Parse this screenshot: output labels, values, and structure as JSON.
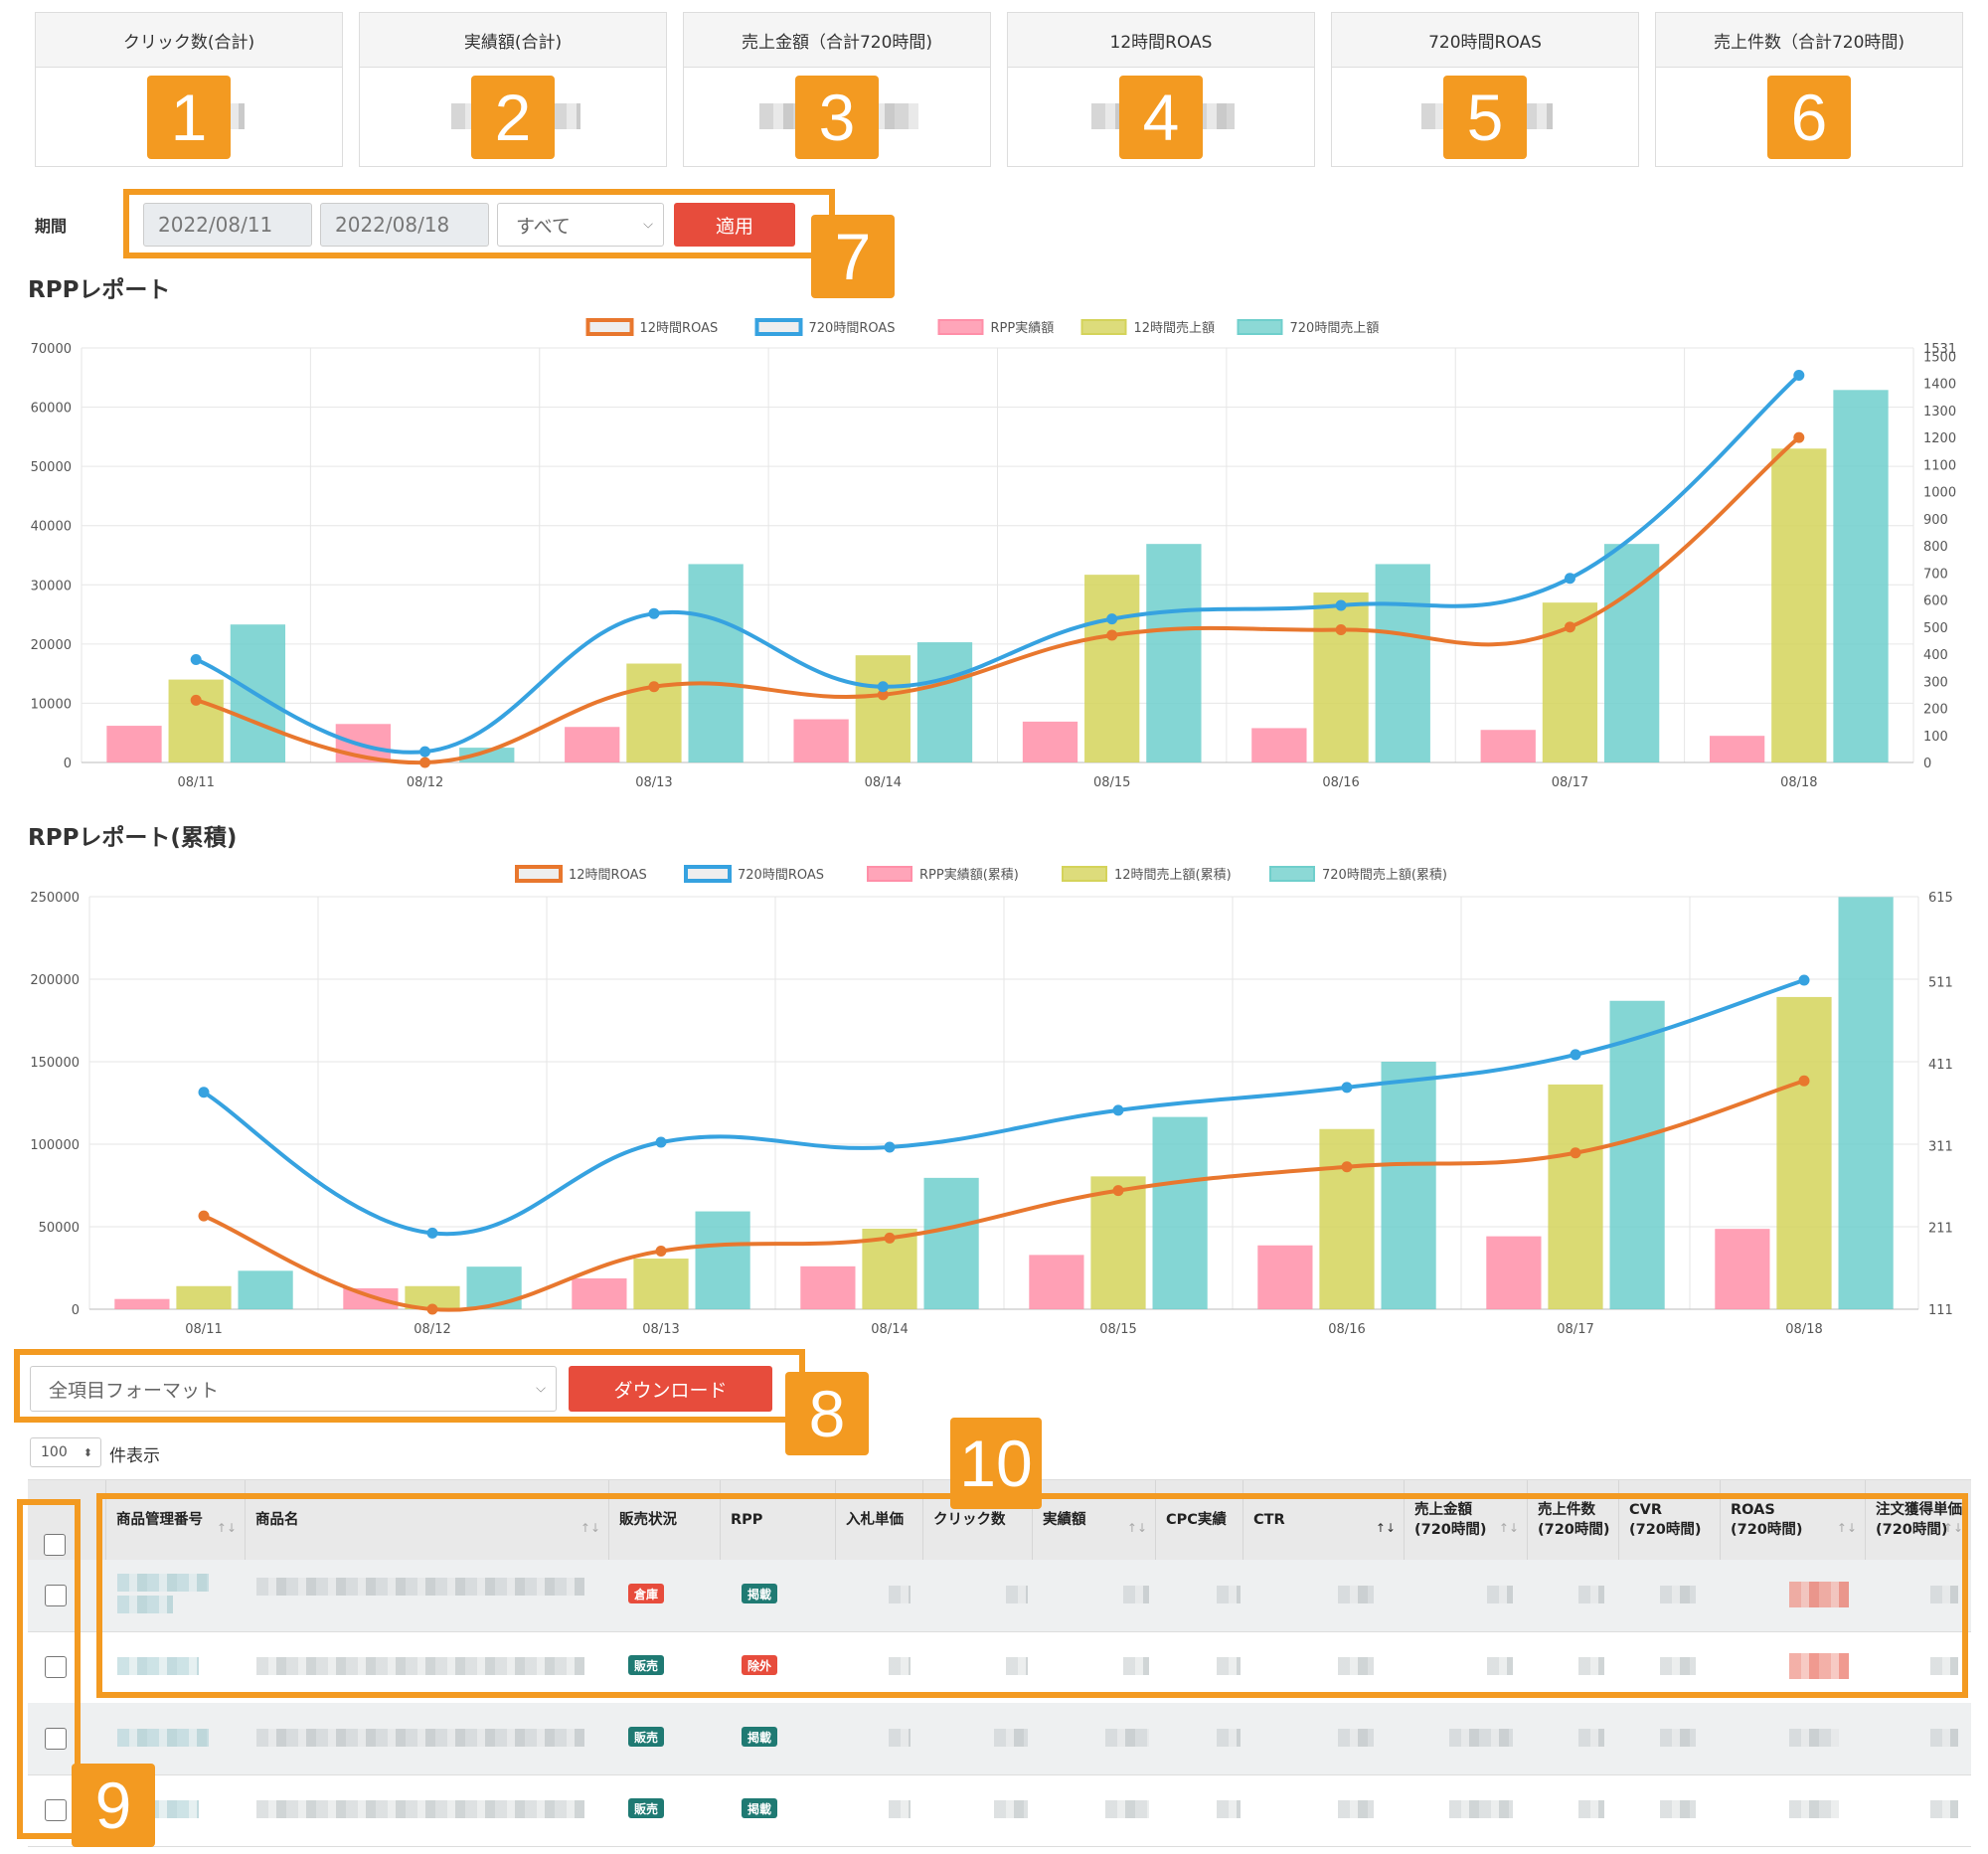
{
  "kpis": [
    {
      "label": "クリック数(合計)",
      "badge": "1"
    },
    {
      "label": "実績額(合計)",
      "badge": "2"
    },
    {
      "label": "売上金額（合計720時間)",
      "badge": "3"
    },
    {
      "label": "12時間ROAS",
      "badge": "4"
    },
    {
      "label": "720時間ROAS",
      "badge": "5"
    },
    {
      "label": "売上件数（合計720時間)",
      "badge": "6"
    }
  ],
  "filter": {
    "label": "期間",
    "start_date": "2022/08/11",
    "end_date": "2022/08/18",
    "select_value": "すべて",
    "apply_label": "適用",
    "badge": "7"
  },
  "colors": {
    "accent": "#f39a21",
    "button_red": "#e74c3c",
    "roas12": "#e8772e",
    "roas720": "#36a2e0",
    "rpp": "#ff8fa8",
    "sales12": "#d4d35a",
    "sales720": "#6fcfcc"
  },
  "chart_data": [
    {
      "type": "bar",
      "title": "RPPレポート",
      "categories": [
        "08/11",
        "08/12",
        "08/13",
        "08/14",
        "08/15",
        "08/16",
        "08/17",
        "08/18"
      ],
      "ylim": [
        0,
        70000
      ],
      "y_ticks": [
        "0",
        "10000",
        "20000",
        "30000",
        "40000",
        "50000",
        "60000",
        "70000"
      ],
      "y2lim": [
        0,
        1531
      ],
      "y2_ticks": [
        "0",
        "100",
        "200",
        "300",
        "400",
        "500",
        "600",
        "700",
        "800",
        "900",
        "1000",
        "1100",
        "1200",
        "1300",
        "1400",
        "1500",
        "1531"
      ],
      "grid": true,
      "legend": "top-center",
      "series": [
        {
          "name": "12時間ROAS",
          "kind": "line",
          "axis": "right",
          "values": [
            230,
            0,
            280,
            250,
            470,
            490,
            500,
            1200
          ]
        },
        {
          "name": "720時間ROAS",
          "kind": "line",
          "axis": "right",
          "values": [
            380,
            40,
            550,
            280,
            530,
            580,
            680,
            1430
          ]
        },
        {
          "name": "RPP実績額",
          "kind": "bar",
          "axis": "left",
          "values": [
            6200,
            6500,
            6000,
            7300,
            6900,
            5800,
            5500,
            4500
          ]
        },
        {
          "name": "12時間売上額",
          "kind": "bar",
          "axis": "left",
          "values": [
            14000,
            0,
            16700,
            18100,
            31700,
            28700,
            27000,
            53000
          ]
        },
        {
          "name": "720時間売上額",
          "kind": "bar",
          "axis": "left",
          "values": [
            23300,
            2500,
            33500,
            20300,
            36900,
            33500,
            36900,
            62900
          ]
        }
      ]
    },
    {
      "type": "bar",
      "title": "RPPレポート(累積)",
      "categories": [
        "08/11",
        "08/12",
        "08/13",
        "08/14",
        "08/15",
        "08/16",
        "08/17",
        "08/18"
      ],
      "ylim": [
        0,
        250000
      ],
      "y_ticks": [
        "0",
        "50000",
        "100000",
        "150000",
        "200000",
        "250000"
      ],
      "y2lim": [
        111,
        615
      ],
      "y2_ticks": [
        "111",
        "211",
        "311",
        "411",
        "511",
        "615"
      ],
      "grid": true,
      "legend": "top-center",
      "series": [
        {
          "name": "12時間ROAS",
          "kind": "line",
          "axis": "right",
          "values": [
            225,
            111,
            182,
            198,
            256,
            285,
            302,
            390
          ]
        },
        {
          "name": "720時間ROAS",
          "kind": "line",
          "axis": "right",
          "values": [
            376,
            204,
            315,
            309,
            354,
            382,
            422,
            513
          ]
        },
        {
          "name": "RPP実績額(累積)",
          "kind": "bar",
          "axis": "left",
          "values": [
            6200,
            12700,
            18700,
            26000,
            32900,
            38700,
            44200,
            48700
          ]
        },
        {
          "name": "12時間売上額(累積)",
          "kind": "bar",
          "axis": "left",
          "values": [
            14000,
            14000,
            30700,
            48800,
            80500,
            109200,
            136200,
            189200
          ]
        },
        {
          "name": "720時間売上額(累積)",
          "kind": "bar",
          "axis": "left",
          "values": [
            23300,
            25800,
            59300,
            79600,
            116500,
            150000,
            186900,
            249800
          ]
        }
      ]
    }
  ],
  "download": {
    "format_value": "全項目フォーマット",
    "button_label": "ダウンロード",
    "badge": "8"
  },
  "pagination": {
    "per_page": "100",
    "per_page_label": "件表示"
  },
  "table": {
    "columns": [
      {
        "l1": "",
        "l2": "商品管理番号"
      },
      {
        "l1": "",
        "l2": "商品名"
      },
      {
        "l1": "",
        "l2": "販売状況"
      },
      {
        "l1": "",
        "l2": "RPP"
      },
      {
        "l1": "",
        "l2": "入札単価"
      },
      {
        "l1": "",
        "l2": "クリック数"
      },
      {
        "l1": "",
        "l2": "実績額"
      },
      {
        "l1": "",
        "l2": "CPC実績"
      },
      {
        "l1": "",
        "l2": "CTR"
      },
      {
        "l1": "売上金額",
        "l2": "(720時間)"
      },
      {
        "l1": "売上件数",
        "l2": "(720時間)"
      },
      {
        "l1": "CVR",
        "l2": "(720時間)"
      },
      {
        "l1": "ROAS",
        "l2": "(720時間)"
      },
      {
        "l1": "注文獲得単価",
        "l2": "(720時間)"
      }
    ],
    "rows": [
      {
        "status": "倉庫",
        "status_color": "red",
        "rpp": "掲載",
        "rpp_color": "teal"
      },
      {
        "status": "販売",
        "status_color": "teal",
        "rpp": "除外",
        "rpp_color": "red"
      },
      {
        "status": "販売",
        "status_color": "teal",
        "rpp": "掲載",
        "rpp_color": "teal"
      },
      {
        "status": "販売",
        "status_color": "teal",
        "rpp": "掲載",
        "rpp_color": "teal"
      }
    ],
    "badge_rows": "9",
    "badge_header": "10"
  }
}
